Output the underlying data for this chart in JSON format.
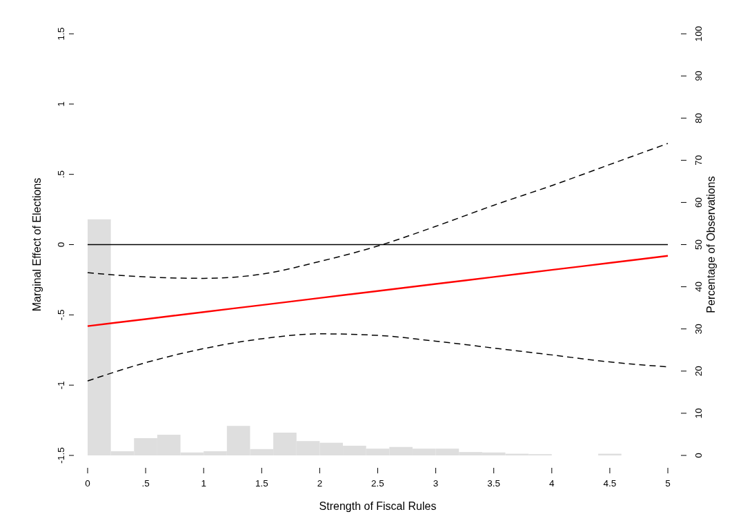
{
  "chart_data": {
    "type": "line",
    "xlabel": "Strength of Fiscal Rules",
    "ylabel": "Marginal Effect of Elections",
    "y2label": "Percentage of Observations",
    "x": [
      0,
      0.5,
      1,
      1.5,
      2,
      2.5,
      3,
      3.5,
      4,
      4.5,
      5
    ],
    "xlim": [
      0,
      5
    ],
    "xticks": [
      0,
      {
        "value": 0.5,
        "label": ".5"
      },
      1,
      1.5,
      2,
      2.5,
      3,
      3.5,
      4,
      4.5,
      5
    ],
    "ylim": [
      -1.5,
      1.5
    ],
    "yticks": [
      -1.5,
      -1,
      {
        "value": -0.5,
        "label": "-.5"
      },
      0,
      {
        "value": 0.5,
        "label": ".5"
      },
      1,
      1.5
    ],
    "y2lim": [
      0,
      100
    ],
    "y2ticks": [
      0,
      10,
      20,
      30,
      40,
      50,
      60,
      70,
      80,
      90,
      100
    ],
    "ref_lines": [
      {
        "axis": "y",
        "value": 0,
        "color": "#000000"
      }
    ],
    "series": [
      {
        "type": "histogram",
        "axis": "y2",
        "color": "#dedede",
        "bins": [
          0,
          0.2,
          0.4,
          0.6,
          0.8,
          1,
          1.2,
          1.4,
          1.6,
          1.8,
          2,
          2.2,
          2.4,
          2.6,
          2.8,
          3,
          3.2,
          3.4,
          3.6,
          3.8,
          4,
          4.4,
          4.6
        ],
        "values": [
          56,
          1.0,
          4.1,
          4.9,
          0.7,
          1.0,
          7.0,
          1.5,
          5.4,
          3.4,
          3.0,
          2.3,
          1.6,
          2.0,
          1.6,
          1.6,
          0.8,
          0.7,
          0.4,
          0.3,
          null,
          0.4
        ]
      },
      {
        "color": "#ff0000",
        "line_style": "solid",
        "values": [
          -0.58,
          -0.53,
          -0.48,
          -0.43,
          -0.38,
          -0.33,
          -0.28,
          -0.23,
          -0.18,
          -0.13,
          -0.08
        ]
      },
      {
        "color": "#000000",
        "line_style": "dashed",
        "values": [
          -0.2,
          -0.23,
          -0.24,
          -0.21,
          -0.12,
          -0.01,
          0.13,
          0.28,
          0.42,
          0.57,
          0.72
        ]
      },
      {
        "color": "#000000",
        "line_style": "dashed",
        "values": [
          -0.97,
          -0.84,
          -0.74,
          -0.67,
          -0.635,
          -0.646,
          -0.687,
          -0.736,
          -0.785,
          -0.835,
          -0.87
        ]
      }
    ]
  }
}
